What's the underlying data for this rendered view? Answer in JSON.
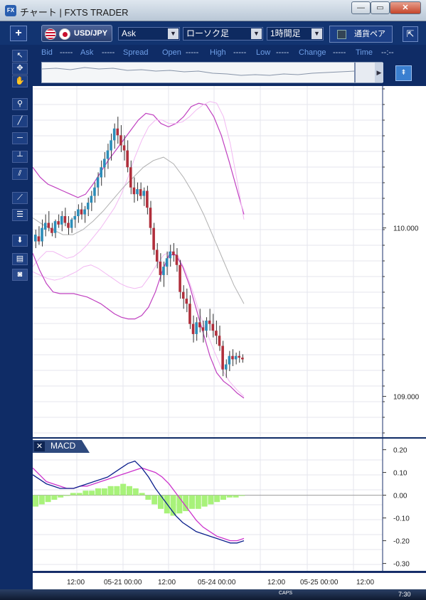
{
  "window": {
    "icon_text": "FX",
    "title": "チャート | FXTS TRADER",
    "min": "—",
    "max": "▭",
    "close": "✕"
  },
  "toolbar": {
    "add": "+",
    "pair": "USD/JPY",
    "side": "Ask",
    "chart_type": "ローソク足",
    "period": "1時間足",
    "currency_button": "通貨ペア",
    "collapse": "⇱"
  },
  "quote": {
    "bid_label": "Bid",
    "bid": "-----",
    "ask_label": "Ask",
    "ask": "-----",
    "spread_label": "Spread",
    "open_label": "Open",
    "open": "-----",
    "high_label": "High",
    "high": "-----",
    "low_label": "Low",
    "low": "-----",
    "change_label": "Change",
    "change": "-----",
    "time_label": "Time",
    "time": "--:--"
  },
  "chart_data": [
    {
      "type": "candlestick",
      "title": "",
      "ylim": [
        108.8,
        110.8
      ],
      "y_ticks": [
        "110.000",
        "109.000"
      ],
      "x_ticks": [
        "12:00",
        "05-21 00:00",
        "12:00",
        "05-24 00:00",
        "12:00",
        "05-25 00:00",
        "12:00"
      ],
      "overlays": [
        "bollinger upper",
        "bollinger middle",
        "bollinger lower"
      ],
      "candles_ohlc": [
        [
          109.92,
          109.99,
          109.88,
          109.96
        ],
        [
          109.95,
          110.01,
          109.9,
          109.92
        ],
        [
          109.92,
          110.05,
          109.89,
          110.0
        ],
        [
          109.99,
          110.08,
          109.95,
          110.03
        ],
        [
          110.03,
          110.1,
          109.98,
          110.0
        ],
        [
          110.0,
          110.03,
          109.95,
          109.97
        ],
        [
          109.97,
          110.05,
          109.94,
          110.04
        ],
        [
          110.04,
          110.08,
          110.0,
          110.02
        ],
        [
          110.02,
          110.1,
          109.98,
          110.07
        ],
        [
          110.07,
          110.12,
          110.01,
          110.03
        ],
        [
          110.03,
          110.07,
          109.96,
          110.0
        ],
        [
          110.0,
          110.06,
          109.97,
          110.05
        ],
        [
          110.05,
          110.1,
          110.0,
          110.07
        ],
        [
          110.07,
          110.14,
          110.03,
          110.11
        ],
        [
          110.11,
          110.15,
          110.05,
          110.08
        ],
        [
          110.08,
          110.13,
          110.03,
          110.11
        ],
        [
          110.11,
          110.18,
          110.07,
          110.15
        ],
        [
          110.15,
          110.22,
          110.1,
          110.19
        ],
        [
          110.19,
          110.27,
          110.15,
          110.24
        ],
        [
          110.24,
          110.33,
          110.19,
          110.3
        ],
        [
          110.3,
          110.4,
          110.25,
          110.36
        ],
        [
          110.36,
          110.45,
          110.3,
          110.41
        ],
        [
          110.41,
          110.5,
          110.35,
          110.46
        ],
        [
          110.46,
          110.56,
          110.4,
          110.52
        ],
        [
          110.52,
          110.62,
          110.47,
          110.59
        ],
        [
          110.59,
          110.66,
          110.5,
          110.55
        ],
        [
          110.55,
          110.61,
          110.45,
          110.49
        ],
        [
          110.49,
          110.55,
          110.4,
          110.46
        ],
        [
          110.46,
          110.52,
          110.33,
          110.36
        ],
        [
          110.36,
          110.4,
          110.2,
          110.24
        ],
        [
          110.24,
          110.3,
          110.15,
          110.2
        ],
        [
          110.2,
          110.27,
          110.16,
          110.23
        ],
        [
          110.23,
          110.27,
          110.17,
          110.19
        ],
        [
          110.19,
          110.24,
          110.13,
          110.22
        ],
        [
          110.22,
          110.25,
          110.08,
          110.12
        ],
        [
          110.12,
          110.16,
          109.96,
          110.0
        ],
        [
          110.0,
          110.03,
          109.84,
          109.87
        ],
        [
          109.87,
          109.91,
          109.76,
          109.8
        ],
        [
          109.8,
          109.85,
          109.68,
          109.72
        ],
        [
          109.72,
          109.8,
          109.65,
          109.77
        ],
        [
          109.77,
          109.86,
          109.72,
          109.82
        ],
        [
          109.82,
          109.9,
          109.77,
          109.86
        ],
        [
          109.86,
          109.91,
          109.8,
          109.84
        ],
        [
          109.84,
          109.88,
          109.74,
          109.78
        ],
        [
          109.78,
          109.81,
          109.58,
          109.62
        ],
        [
          109.62,
          109.66,
          109.52,
          109.58
        ],
        [
          109.58,
          109.64,
          109.5,
          109.55
        ],
        [
          109.55,
          109.6,
          109.4,
          109.43
        ],
        [
          109.43,
          109.48,
          109.32,
          109.37
        ],
        [
          109.37,
          109.47,
          109.33,
          109.44
        ],
        [
          109.44,
          109.52,
          109.38,
          109.41
        ],
        [
          109.41,
          109.45,
          109.32,
          109.39
        ],
        [
          109.39,
          109.47,
          109.35,
          109.45
        ],
        [
          109.45,
          109.52,
          109.39,
          109.43
        ],
        [
          109.43,
          109.49,
          109.35,
          109.39
        ],
        [
          109.39,
          109.45,
          109.31,
          109.36
        ],
        [
          109.36,
          109.42,
          109.27,
          109.3
        ],
        [
          109.3,
          109.33,
          109.12,
          109.16
        ],
        [
          109.16,
          109.22,
          109.11,
          109.19
        ],
        [
          109.19,
          109.27,
          109.15,
          109.24
        ],
        [
          109.24,
          109.28,
          109.18,
          109.22
        ],
        [
          109.22,
          109.26,
          109.19,
          109.24
        ],
        [
          109.24,
          109.27,
          109.2,
          109.23
        ],
        [
          109.23,
          109.25,
          109.2,
          109.22
        ]
      ],
      "upper_band": [
        109.77,
        109.82,
        109.86,
        109.86,
        109.84,
        109.82,
        109.83,
        109.86,
        109.9,
        109.95,
        110.0,
        110.06,
        110.12,
        110.2,
        110.3,
        110.42,
        110.52,
        110.6,
        110.64,
        110.64,
        110.62,
        110.62,
        110.63,
        110.66,
        110.7,
        110.73,
        110.75,
        110.74,
        110.66,
        110.5,
        110.28,
        110.05
      ],
      "middle_band": [
        110.06,
        110.02,
        109.99,
        109.96,
        109.96,
        109.99,
        110.04,
        110.1,
        110.17,
        110.24,
        110.3,
        110.36,
        110.4,
        110.42,
        110.38,
        110.3,
        110.2,
        110.08,
        109.94,
        109.8,
        109.66,
        109.55
      ],
      "lower_band": [
        109.74,
        109.72,
        109.7,
        109.69,
        109.7,
        109.72,
        109.74,
        109.77,
        109.78,
        109.76,
        109.73,
        109.7,
        109.67,
        109.65,
        109.64,
        109.65,
        109.71,
        109.78,
        109.84,
        109.86,
        109.83,
        109.74,
        109.62,
        109.48,
        109.37,
        109.26,
        109.16,
        109.09,
        109.04,
        109.0
      ],
      "outer_band": [
        110.36,
        110.3,
        110.26,
        110.24,
        110.22,
        110.2,
        110.18,
        110.2,
        110.26,
        110.33,
        110.4,
        110.46,
        110.52,
        110.58,
        110.64,
        110.68,
        110.67,
        110.62,
        110.6,
        110.62,
        110.66,
        110.72,
        110.74,
        110.73,
        110.66,
        110.55,
        110.4,
        110.24,
        110.08
      ],
      "outer_lower_band": [
        109.85,
        109.75,
        109.67,
        109.62,
        109.61,
        109.61,
        109.61,
        109.6,
        109.59,
        109.57,
        109.55,
        109.52,
        109.49,
        109.47,
        109.46,
        109.46,
        109.48,
        109.53,
        109.62,
        109.74,
        109.84,
        109.84,
        109.77,
        109.66,
        109.52,
        109.38,
        109.24,
        109.14,
        109.09,
        109.06,
        109.02,
        108.99
      ]
    },
    {
      "type": "macd",
      "title": "MACD",
      "ylim": [
        -0.32,
        0.23
      ],
      "y_ticks": [
        "0.20",
        "0.10",
        "0.00",
        "-0.10",
        "-0.20",
        "-0.30"
      ],
      "macd_line": [
        0.09,
        0.07,
        0.05,
        0.04,
        0.03,
        0.03,
        0.03,
        0.04,
        0.05,
        0.06,
        0.07,
        0.08,
        0.1,
        0.12,
        0.14,
        0.15,
        0.12,
        0.08,
        0.03,
        -0.01,
        -0.05,
        -0.09,
        -0.12,
        -0.14,
        -0.16,
        -0.17,
        -0.18,
        -0.19,
        -0.2,
        -0.21,
        -0.21,
        -0.2
      ],
      "signal_line": [
        0.12,
        0.09,
        0.06,
        0.05,
        0.04,
        0.03,
        0.03,
        0.04,
        0.04,
        0.05,
        0.06,
        0.07,
        0.08,
        0.09,
        0.1,
        0.11,
        0.12,
        0.11,
        0.1,
        0.08,
        0.05,
        0.01,
        -0.03,
        -0.07,
        -0.11,
        -0.14,
        -0.16,
        -0.18,
        -0.19,
        -0.2,
        -0.2,
        -0.19
      ],
      "histogram": [
        -0.05,
        -0.04,
        -0.03,
        -0.02,
        -0.01,
        0.0,
        0.01,
        0.01,
        0.02,
        0.02,
        0.03,
        0.03,
        0.04,
        0.04,
        0.05,
        0.04,
        0.03,
        0.01,
        -0.02,
        -0.04,
        -0.06,
        -0.08,
        -0.09,
        -0.08,
        -0.07,
        -0.06,
        -0.06,
        -0.05,
        -0.04,
        -0.03,
        -0.02,
        -0.01,
        -0.01,
        0.0
      ]
    }
  ],
  "macd_panel": {
    "close": "✕",
    "label": "MACD"
  },
  "time_axis": [
    "12:00",
    "05-21 00:00",
    "12:00",
    "05-24 00:00",
    "12:00",
    "05-25 00:00",
    "12:00"
  ],
  "price_axis": [
    "110.000",
    "109.000"
  ],
  "macd_axis": [
    "0.20",
    "0.10",
    "0.00",
    "-0.10",
    "-0.20",
    "-0.30"
  ],
  "tray": {
    "caps": "CAPS",
    "clock": "7:30"
  },
  "colors": {
    "up": "#2b8db8",
    "down": "#b02f3b",
    "macd": "#0b1f8c",
    "signal": "#cc33cc",
    "hist": "#a8f27a",
    "band": "#c040c0",
    "band_mid": "#b0b0b0",
    "band_light": "#f2b8f2"
  }
}
